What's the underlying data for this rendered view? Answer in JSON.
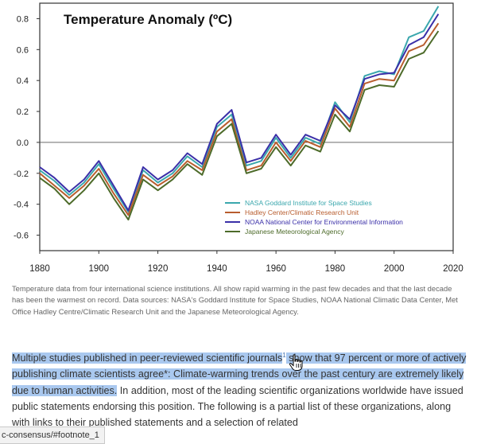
{
  "chart_data": {
    "type": "line",
    "title": "Temperature Anomaly (ºC)",
    "xlabel": "",
    "ylabel": "",
    "xlim": [
      1880,
      2020
    ],
    "ylim": [
      -0.7,
      0.9
    ],
    "x_ticks": [
      1880,
      1900,
      1920,
      1940,
      1960,
      1980,
      2000,
      2020
    ],
    "y_ticks": [
      -0.6,
      -0.4,
      -0.2,
      0.0,
      0.2,
      0.4,
      0.6,
      0.8
    ],
    "y_tick_labels": [
      "-0.6",
      "-0.4",
      "-0.2",
      "0.0",
      "0.2",
      "0.4",
      "0.6",
      "0.8"
    ],
    "zero_line": true,
    "legend_position": "lower-right",
    "x": [
      1880,
      1885,
      1890,
      1895,
      1900,
      1905,
      1910,
      1915,
      1920,
      1925,
      1930,
      1935,
      1940,
      1945,
      1950,
      1955,
      1960,
      1965,
      1970,
      1975,
      1980,
      1985,
      1990,
      1995,
      2000,
      2005,
      2010,
      2015
    ],
    "series": [
      {
        "name": "NASA Goddard Institute for Space Studies",
        "color": "#3aa7ad",
        "values": [
          -0.18,
          -0.25,
          -0.34,
          -0.26,
          -0.14,
          -0.3,
          -0.45,
          -0.18,
          -0.26,
          -0.2,
          -0.09,
          -0.16,
          0.1,
          0.18,
          -0.15,
          -0.12,
          0.03,
          -0.1,
          0.03,
          -0.01,
          0.26,
          0.13,
          0.43,
          0.46,
          0.44,
          0.68,
          0.72,
          0.88
        ]
      },
      {
        "name": "Hadley Center/Climatic Research Unit",
        "color": "#b85d2e",
        "values": [
          -0.2,
          -0.28,
          -0.36,
          -0.28,
          -0.17,
          -0.33,
          -0.47,
          -0.21,
          -0.28,
          -0.22,
          -0.12,
          -0.18,
          0.07,
          0.15,
          -0.18,
          -0.15,
          0.0,
          -0.12,
          0.01,
          -0.03,
          0.22,
          0.1,
          0.38,
          0.41,
          0.4,
          0.59,
          0.63,
          0.77
        ]
      },
      {
        "name": "NOAA National Center for Environmental Information",
        "color": "#3a2fa8",
        "values": [
          -0.16,
          -0.23,
          -0.32,
          -0.24,
          -0.12,
          -0.28,
          -0.44,
          -0.16,
          -0.24,
          -0.18,
          -0.07,
          -0.14,
          0.12,
          0.21,
          -0.13,
          -0.1,
          0.05,
          -0.08,
          0.05,
          0.01,
          0.24,
          0.15,
          0.41,
          0.44,
          0.45,
          0.63,
          0.68,
          0.83
        ]
      },
      {
        "name": "Japanese Meteorological Agency",
        "color": "#4d6b2a",
        "values": [
          -0.23,
          -0.3,
          -0.4,
          -0.31,
          -0.2,
          -0.36,
          -0.5,
          -0.24,
          -0.31,
          -0.24,
          -0.14,
          -0.21,
          0.04,
          0.12,
          -0.2,
          -0.17,
          -0.03,
          -0.15,
          -0.02,
          -0.06,
          0.18,
          0.07,
          0.34,
          0.37,
          0.36,
          0.54,
          0.58,
          0.72
        ]
      }
    ]
  },
  "caption": "Temperature data from four international science institutions. All show rapid warming in the past few decades and that the last decade has been the warmest on record. Data sources: NASA's Goddard Institute for Space Studies, NOAA National Climatic Data Center, Met Office Hadley Centre/Climatic Research Unit and the Japanese Meteorological Agency.",
  "article": {
    "highlight_1": "Multiple studies published in peer-reviewed scientific journals",
    "footnote_marker": "1",
    "highlight_2": " show that 97 percent or more of actively publishing climate scientists agree*: Climate-warming trends over the past century are extremely likely due to human activities.",
    "rest": " In addition, most of the leading scientific organizations worldwide have issued public statements endorsing this position. The following is a partial list of these organizations, along with links to their published statements and a selection of related"
  },
  "status_bar": {
    "url": "c-consensus/#footnote_1"
  },
  "cursor": {
    "icon": "hand-pointer-icon"
  }
}
